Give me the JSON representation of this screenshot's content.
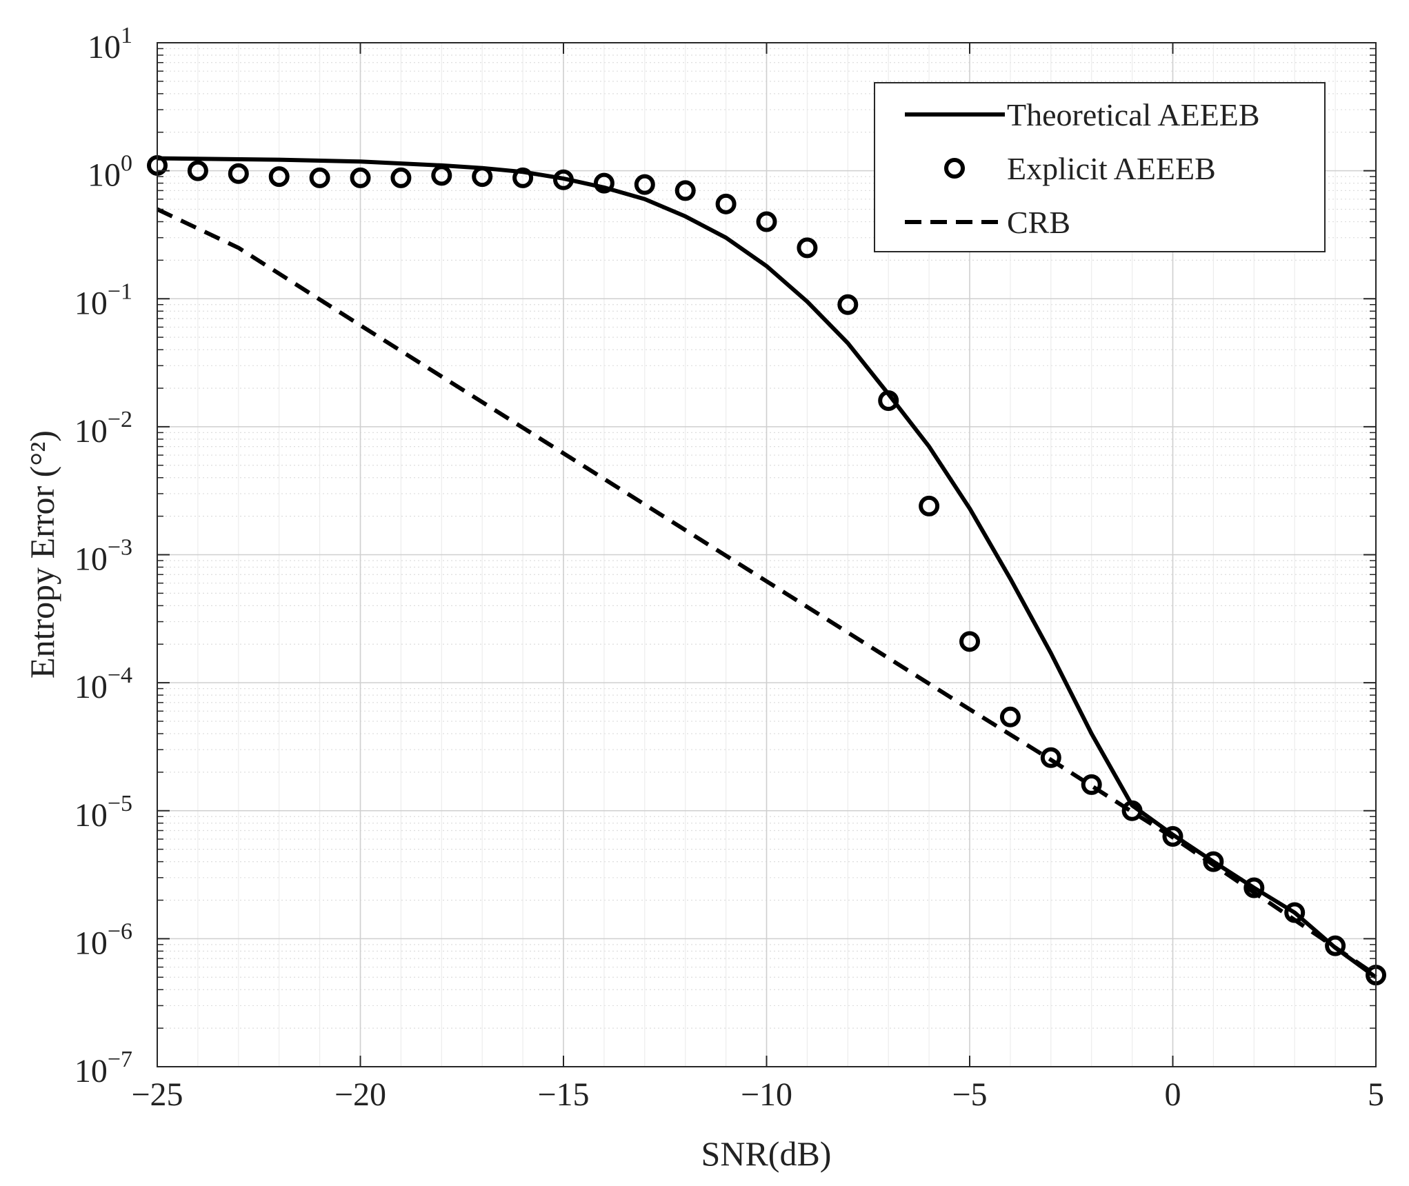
{
  "chart_data": {
    "type": "line",
    "y_scale": "log",
    "xlabel": "SNR(dB)",
    "ylabel": "Entropy Error (°²)",
    "xlim": [
      -25,
      5
    ],
    "ylim": [
      1e-07,
      10
    ],
    "x_ticks": [
      -25,
      -20,
      -15,
      -10,
      -5,
      0,
      5
    ],
    "x_tick_labels": [
      "−25",
      "−20",
      "−15",
      "−10",
      "−5",
      "0",
      "5"
    ],
    "y_tick_exponents": [
      -7,
      -6,
      -5,
      -4,
      -3,
      -2,
      -1,
      0,
      1
    ],
    "y_tick_exponent_labels": [
      "−7",
      "−6",
      "−5",
      "−4",
      "−3",
      "−2",
      "−1",
      "0",
      "1"
    ],
    "y_tick_base": "10",
    "grid": true,
    "legend_position": "top-right",
    "series": [
      {
        "name": "Theoretical AEEEB",
        "style": "solid",
        "x": [
          -25,
          -22,
          -20,
          -18,
          -17,
          -16,
          -15,
          -14,
          -13,
          -12,
          -11,
          -10,
          -9,
          -8,
          -7,
          -6,
          -5,
          -4,
          -3,
          -2,
          -1,
          0,
          1,
          2,
          3,
          4,
          5
        ],
        "y": [
          1.25,
          1.22,
          1.18,
          1.1,
          1.05,
          0.98,
          0.87,
          0.74,
          0.6,
          0.44,
          0.3,
          0.18,
          0.095,
          0.045,
          0.018,
          0.007,
          0.0023,
          0.00065,
          0.00017,
          4e-05,
          1.1e-05,
          6.5e-06,
          4e-06,
          2.5e-06,
          1.6e-06,
          8.5e-07,
          5e-07
        ]
      },
      {
        "name": "Explicit AEEEB",
        "style": "circle-markers",
        "x": [
          -25,
          -24,
          -23,
          -22,
          -21,
          -20,
          -19,
          -18,
          -17,
          -16,
          -15,
          -14,
          -13,
          -12,
          -11,
          -10,
          -9,
          -8,
          -7,
          -6,
          -5,
          -4,
          -3,
          -2,
          -1,
          0,
          1,
          2,
          3,
          4,
          5
        ],
        "y": [
          1.1,
          1.0,
          0.95,
          0.9,
          0.88,
          0.88,
          0.88,
          0.92,
          0.9,
          0.88,
          0.85,
          0.8,
          0.78,
          0.7,
          0.55,
          0.4,
          0.25,
          0.09,
          0.016,
          0.0024,
          0.00021,
          5.4e-05,
          2.6e-05,
          1.6e-05,
          1e-05,
          6.3e-06,
          4e-06,
          2.5e-06,
          1.6e-06,
          8.8e-07,
          5.2e-07
        ]
      },
      {
        "name": "CRB",
        "style": "dashed",
        "x": [
          -25,
          -23,
          -20,
          -15,
          -10,
          -5,
          -3,
          -1,
          0,
          5
        ],
        "y": [
          0.5,
          0.25,
          0.062,
          0.0062,
          0.00062,
          6.2e-05,
          2.5e-05,
          9.8e-06,
          6.2e-06,
          5.2e-07
        ]
      }
    ]
  }
}
